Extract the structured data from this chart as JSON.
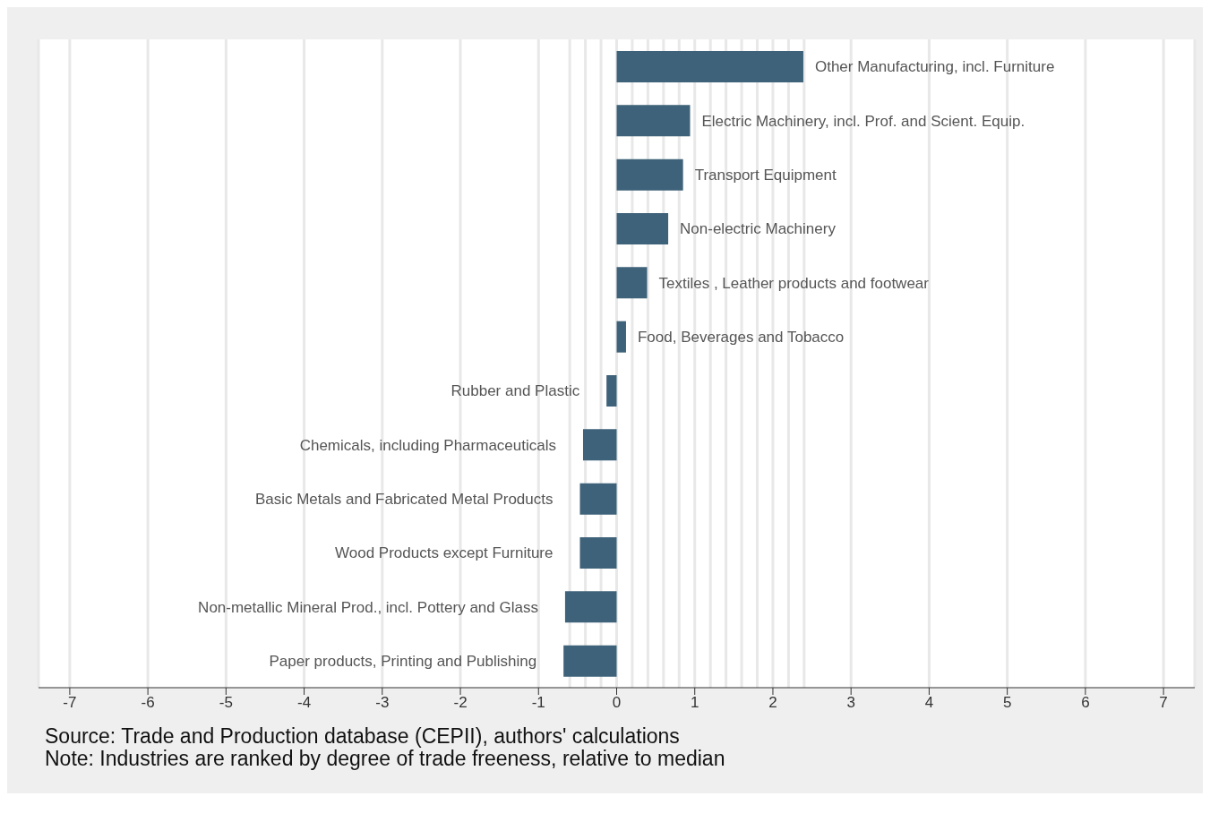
{
  "chart_data": {
    "type": "bar",
    "orientation": "horizontal",
    "tick_labels": "x",
    "grid": "x",
    "categories": [
      "Other Manufacturing, incl. Furniture",
      "Electric Machinery, incl. Prof. and Scient. Equip.",
      "Transport Equipment",
      "Non-electric Machinery",
      "Textiles , Leather products and footwear",
      "Food, Beverages and Tobacco",
      "Rubber and Plastic",
      "Chemicals, including Pharmaceuticals",
      "Basic Metals and Fabricated Metal Products",
      "Wood Products except Furniture",
      "Non-metallic Mineral Prod., incl. Pottery and Glass",
      "Paper products, Printing and Publishing"
    ],
    "values": [
      2.39,
      0.94,
      0.85,
      0.66,
      0.39,
      0.12,
      -0.13,
      -0.43,
      -0.47,
      -0.47,
      -0.66,
      -0.68
    ],
    "color": "#3e6279",
    "xlim": [
      -7.4,
      7.4
    ],
    "xticks": [
      -7,
      -6,
      -5,
      -4,
      -3,
      -2,
      -1,
      0,
      1,
      2,
      3,
      4,
      5,
      6,
      7
    ],
    "ref_lines": [
      {
        "axis": "x",
        "value": -0.6,
        "color": "#e8e8e8"
      },
      {
        "axis": "x",
        "value": -0.4,
        "color": "#e8e8e8"
      },
      {
        "axis": "x",
        "value": -0.2,
        "color": "#e8e8e8"
      },
      {
        "axis": "x",
        "value": 0.2,
        "color": "#e8e8e8"
      },
      {
        "axis": "x",
        "value": 0.4,
        "color": "#e8e8e8"
      },
      {
        "axis": "x",
        "value": 0.6,
        "color": "#e8e8e8"
      },
      {
        "axis": "x",
        "value": 0.8,
        "color": "#e8e8e8"
      },
      {
        "axis": "x",
        "value": 1.2,
        "color": "#e8e8e8"
      },
      {
        "axis": "x",
        "value": 1.4,
        "color": "#e8e8e8"
      },
      {
        "axis": "x",
        "value": 1.6,
        "color": "#e8e8e8"
      },
      {
        "axis": "x",
        "value": 1.8,
        "color": "#e8e8e8"
      },
      {
        "axis": "x",
        "value": 2.2,
        "color": "#e8e8e8"
      },
      {
        "axis": "x",
        "value": 2.4,
        "color": "#e8e8e8"
      }
    ],
    "annotations": [
      "Source: Trade and Production database (CEPII), authors' calculations",
      "Note: Industries are ranked by degree of trade freeness, relative to median"
    ]
  }
}
